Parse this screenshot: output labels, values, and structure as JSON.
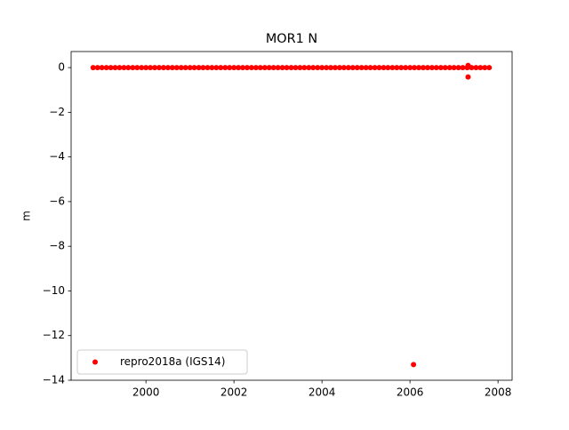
{
  "chart_data": {
    "type": "scatter",
    "title": "MOR1 N",
    "ylabel": "m",
    "series": [
      {
        "name": "repro2018a (IGS14)",
        "color": "#ff0000",
        "x": [
          1998.8,
          1998.9,
          1999.0,
          1999.1,
          1999.2,
          1999.3,
          1999.4,
          1999.5,
          1999.6,
          1999.7,
          1999.8,
          1999.9,
          2000.0,
          2000.1,
          2000.2,
          2000.3,
          2000.4,
          2000.5,
          2000.6,
          2000.7,
          2000.8,
          2000.9,
          2001.0,
          2001.1,
          2001.2,
          2001.3,
          2001.4,
          2001.5,
          2001.6,
          2001.7,
          2001.8,
          2001.9,
          2002.0,
          2002.1,
          2002.2,
          2002.3,
          2002.4,
          2002.5,
          2002.6,
          2002.7,
          2002.8,
          2002.9,
          2003.0,
          2003.1,
          2003.2,
          2003.3,
          2003.4,
          2003.5,
          2003.6,
          2003.7,
          2003.8,
          2003.9,
          2004.0,
          2004.1,
          2004.2,
          2004.3,
          2004.4,
          2004.5,
          2004.6,
          2004.7,
          2004.8,
          2004.9,
          2005.0,
          2005.1,
          2005.2,
          2005.3,
          2005.4,
          2005.5,
          2005.6,
          2005.7,
          2005.8,
          2005.9,
          2006.0,
          2006.08,
          2006.1,
          2006.2,
          2006.3,
          2006.4,
          2006.5,
          2006.6,
          2006.7,
          2006.8,
          2006.9,
          2007.0,
          2007.1,
          2007.2,
          2007.3,
          2007.32,
          2007.32,
          2007.4,
          2007.5,
          2007.6,
          2007.7,
          2007.8
        ],
        "values": [
          0,
          0,
          0,
          0,
          0,
          0,
          0,
          0,
          0,
          0,
          0,
          0,
          0,
          0,
          0,
          0,
          0,
          0,
          0,
          0,
          0,
          0,
          0,
          0,
          0,
          0,
          0,
          0,
          0,
          0,
          0,
          0,
          0,
          0,
          0,
          0,
          0,
          0,
          0,
          0,
          0,
          0,
          0,
          0,
          0,
          0,
          0,
          0,
          0,
          0,
          0,
          0,
          0,
          0,
          0,
          0,
          0,
          0,
          0,
          0,
          0,
          0,
          0,
          0,
          0,
          0,
          0,
          0,
          0,
          0,
          0,
          0,
          0,
          -13.3,
          0,
          0,
          0,
          0,
          0,
          0,
          0,
          0,
          0,
          0,
          0,
          0,
          0,
          0.1,
          -0.42,
          0,
          0,
          0,
          0,
          0
        ]
      }
    ],
    "xlim": [
      1998.3,
      2008.32
    ],
    "xticks": [
      2000,
      2002,
      2004,
      2006,
      2008
    ],
    "ylim": [
      -14,
      0.72
    ],
    "yticks": [
      {
        "value": -14,
        "label": "−14"
      },
      {
        "value": -12,
        "label": "−12"
      },
      {
        "value": -10,
        "label": "−10"
      },
      {
        "value": -8,
        "label": "−8"
      },
      {
        "value": -6,
        "label": "−6"
      },
      {
        "value": -4,
        "label": "−4"
      },
      {
        "value": -2,
        "label": "−2"
      },
      0
    ],
    "legend": "lower left",
    "grid": false
  }
}
